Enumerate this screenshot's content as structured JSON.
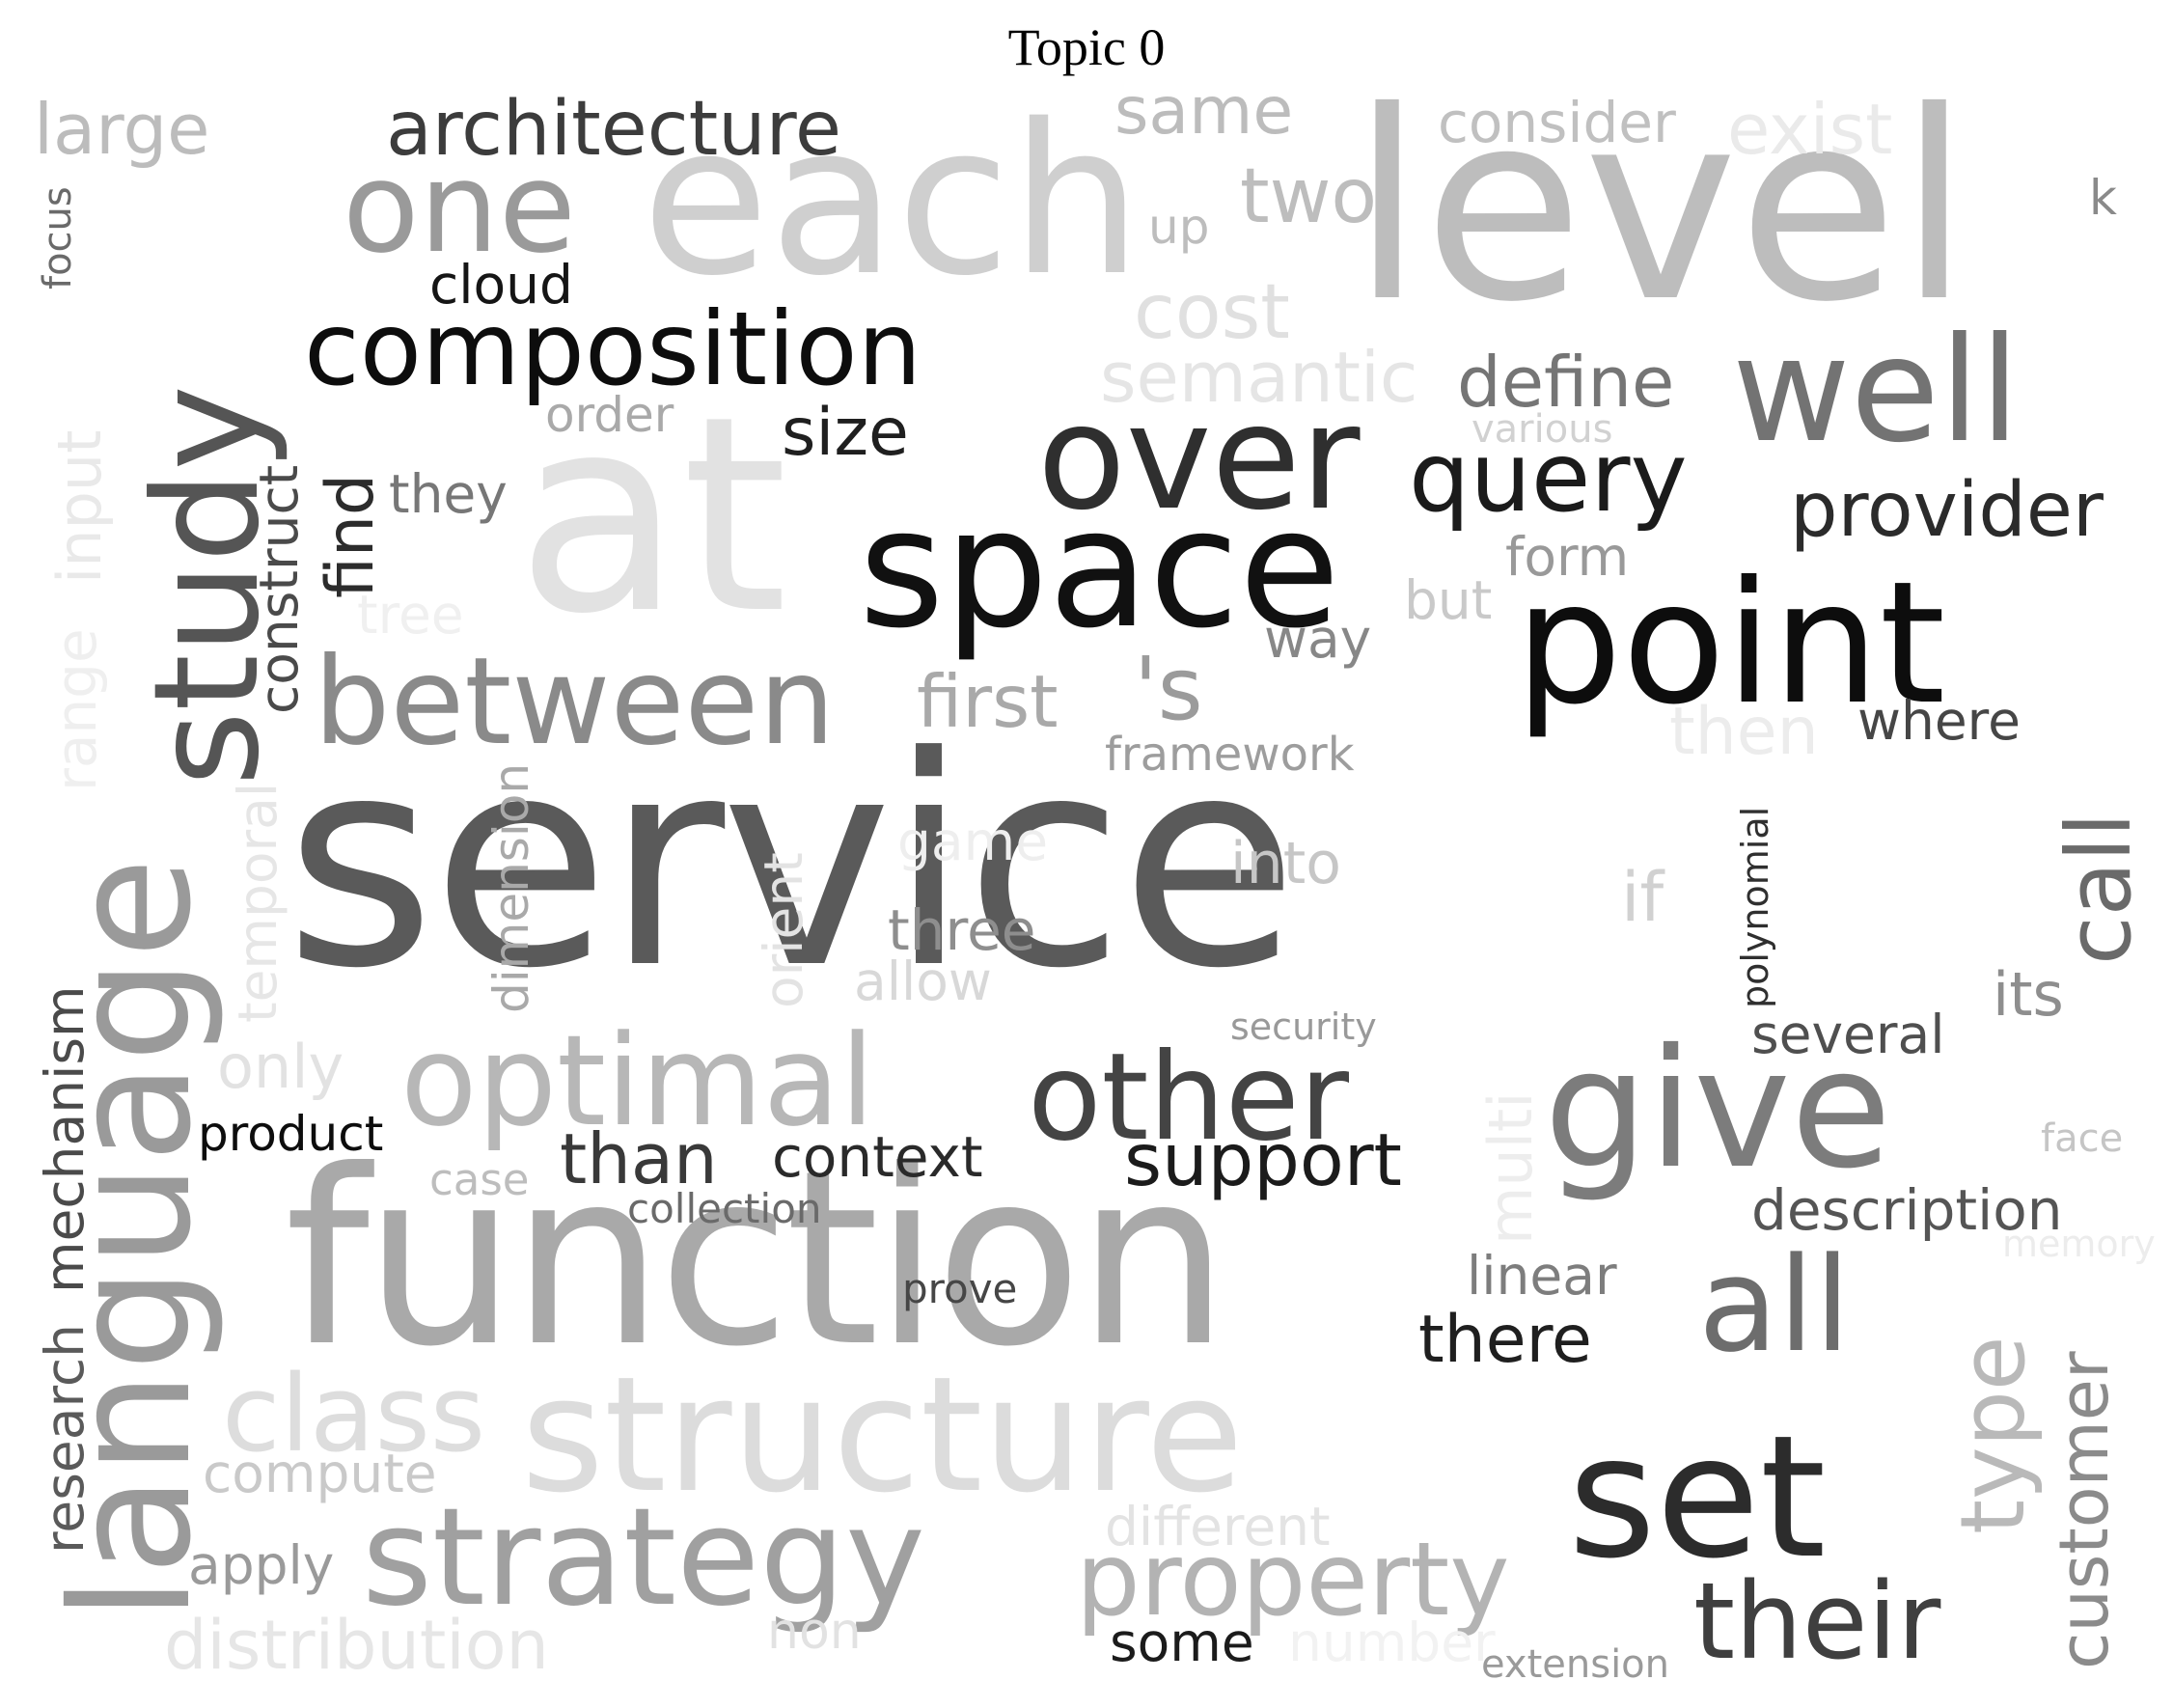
{
  "title": "Topic 0",
  "words": [
    {
      "text": "service",
      "color": "#5a5a5a"
    },
    {
      "text": "level",
      "color": "#bdbdbd"
    },
    {
      "text": "at",
      "color": "#e2e2e2"
    },
    {
      "text": "function",
      "color": "#a9a9a9"
    },
    {
      "text": "each",
      "color": "#cfcfcf"
    },
    {
      "text": "study",
      "color": "#555555"
    },
    {
      "text": "language",
      "color": "#9a9a9a"
    },
    {
      "text": "point",
      "color": "#0d0d0d"
    },
    {
      "text": "space",
      "color": "#111111"
    },
    {
      "text": "over",
      "color": "#2f2f2f"
    },
    {
      "text": "give",
      "color": "#7c7c7c"
    },
    {
      "text": "structure",
      "color": "#dcdcdc"
    },
    {
      "text": "set",
      "color": "#2c2c2c"
    },
    {
      "text": "well",
      "color": "#737373"
    },
    {
      "text": "one",
      "color": "#9a9a9a"
    },
    {
      "text": "strategy",
      "color": "#a0a0a0"
    },
    {
      "text": "between",
      "color": "#8a8a8a"
    },
    {
      "text": "optimal",
      "color": "#b7b7b7"
    },
    {
      "text": "other",
      "color": "#444444"
    },
    {
      "text": "composition",
      "color": "#0d0d0d"
    },
    {
      "text": "query",
      "color": "#1b1b1b"
    },
    {
      "text": "all",
      "color": "#6d6d6d"
    },
    {
      "text": "property",
      "color": "#b3b3b3"
    },
    {
      "text": "their",
      "color": "#3f3f3f"
    },
    {
      "text": "architecture",
      "color": "#3c3c3c"
    },
    {
      "text": "class",
      "color": "#dddddd"
    },
    {
      "text": "provider",
      "color": "#2b2b2b"
    },
    {
      "text": "call",
      "color": "#6a6a6a"
    },
    {
      "text": "type",
      "color": "#b9b9b9"
    },
    {
      "text": "customer",
      "color": "#8b8b8b"
    },
    {
      "text": "support",
      "color": "#1b1b1b"
    },
    {
      "text": "large",
      "color": "#bcbcbc"
    },
    {
      "text": "same",
      "color": "#bcbcbc"
    },
    {
      "text": "two",
      "color": "#bdbdbd"
    },
    {
      "text": "cost",
      "color": "#e0e0e0"
    },
    {
      "text": "semantic",
      "color": "#e5e5e5"
    },
    {
      "text": "define",
      "color": "#757575"
    },
    {
      "text": "consider",
      "color": "#c0c0c0"
    },
    {
      "text": "exist",
      "color": "#eaeaea"
    },
    {
      "text": "'s",
      "color": "#9b9b9b"
    },
    {
      "text": "first",
      "color": "#a9a9a9"
    },
    {
      "text": "than",
      "color": "#393939"
    },
    {
      "text": "context",
      "color": "#2a2a2a"
    },
    {
      "text": "description",
      "color": "#555555"
    },
    {
      "text": "there",
      "color": "#1f1f1f"
    },
    {
      "text": "size",
      "color": "#1f1f1f"
    },
    {
      "text": "find",
      "color": "#2c2c2c"
    },
    {
      "text": "construct",
      "color": "#4a4a4a"
    },
    {
      "text": "cloud",
      "color": "#151515"
    },
    {
      "text": "its",
      "color": "#8e8e8e"
    },
    {
      "text": "several",
      "color": "#4f4f4f"
    },
    {
      "text": "mechanism",
      "color": "#4a4a4a"
    },
    {
      "text": "research",
      "color": "#5a5a5a"
    },
    {
      "text": "product",
      "color": "#0d0d0d"
    },
    {
      "text": "compute",
      "color": "#c9c9c9"
    },
    {
      "text": "apply",
      "color": "#9a9a9a"
    },
    {
      "text": "distribution",
      "color": "#e6e6e6"
    },
    {
      "text": "different",
      "color": "#e3e3e3"
    },
    {
      "text": "three",
      "color": "#8e8e8e"
    },
    {
      "text": "allow",
      "color": "#d8d8d8"
    },
    {
      "text": "into",
      "color": "#c6c6c6"
    },
    {
      "text": "if",
      "color": "#d1d1d1"
    },
    {
      "text": "game",
      "color": "#eeeeee"
    },
    {
      "text": "then",
      "color": "#ececec"
    },
    {
      "text": "where",
      "color": "#464646"
    },
    {
      "text": "framework",
      "color": "#9d9d9d"
    },
    {
      "text": "way",
      "color": "#878787"
    },
    {
      "text": "form",
      "color": "#999999"
    },
    {
      "text": "but",
      "color": "#c9c9c9"
    },
    {
      "text": "order",
      "color": "#a9a9a9"
    },
    {
      "text": "they",
      "color": "#777777"
    },
    {
      "text": "up",
      "color": "#bdbdbd"
    },
    {
      "text": "k",
      "color": "#8a8a8a"
    },
    {
      "text": "various",
      "color": "#d1d1d1"
    },
    {
      "text": "input",
      "color": "#e9e9e9"
    },
    {
      "text": "range",
      "color": "#efefef"
    },
    {
      "text": "tree",
      "color": "#f0f0f0"
    },
    {
      "text": "temporal",
      "color": "#e6e6e6"
    },
    {
      "text": "dimension",
      "color": "#a9a9a9"
    },
    {
      "text": "orient",
      "color": "#e3e3e3"
    },
    {
      "text": "polynomial",
      "color": "#2f2f2f"
    },
    {
      "text": "security",
      "color": "#999999"
    },
    {
      "text": "only",
      "color": "#e2e2e2"
    },
    {
      "text": "case",
      "color": "#bdbdbd"
    },
    {
      "text": "collection",
      "color": "#6a6a6a"
    },
    {
      "text": "prove",
      "color": "#464646"
    },
    {
      "text": "multi",
      "color": "#ededed"
    },
    {
      "text": "linear",
      "color": "#7d7d7d"
    },
    {
      "text": "face",
      "color": "#c5c5c5"
    },
    {
      "text": "memory",
      "color": "#ececec"
    },
    {
      "text": "non",
      "color": "#e2e2e2"
    },
    {
      "text": "some",
      "color": "#1b1b1b"
    },
    {
      "text": "number",
      "color": "#f2f2f2"
    },
    {
      "text": "extension",
      "color": "#9a9a9a"
    },
    {
      "text": "focus",
      "color": "#6a6a6a"
    }
  ]
}
